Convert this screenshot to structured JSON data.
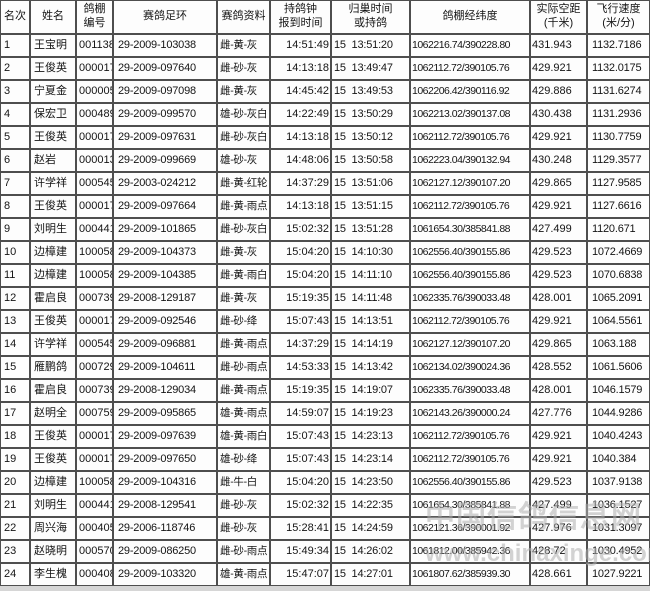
{
  "watermark": {
    "line1": "中国信鸽信息网",
    "line2": "www.chinaxinge.com"
  },
  "table": {
    "headers": [
      {
        "l1": "名次",
        "l2": ""
      },
      {
        "l1": "姓名",
        "l2": ""
      },
      {
        "l1": "鸽棚",
        "l2": "编号"
      },
      {
        "l1": "赛鸽足环",
        "l2": ""
      },
      {
        "l1": "赛鸽资料",
        "l2": ""
      },
      {
        "l1": "持鸽钟",
        "l2": "报到时间"
      },
      {
        "l1": "归巢时间",
        "l2": "或持鸽"
      },
      {
        "l1": "鸽棚经纬度",
        "l2": ""
      },
      {
        "l1": "实际空距",
        "l2": "(千米)"
      },
      {
        "l1": "飞行速度",
        "l2": "(米/分)"
      }
    ],
    "rows": [
      [
        "1",
        "王宝明",
        "001138",
        "29-2009-103038",
        "雌-黄-灰",
        "14:51:49",
        "15  13:51:20",
        "1062216.74/390228.80",
        "431.943",
        "1132.7186"
      ],
      [
        "2",
        "王俊英",
        "000017",
        "29-2009-097640",
        "雌-砂-灰",
        "14:13:18",
        "15  13:49:47",
        "1062112.72/390105.76",
        "429.921",
        "1132.0175"
      ],
      [
        "3",
        "宁夏金",
        "000005",
        "29-2009-097098",
        "雌-黄-灰",
        "14:45:42",
        "15  13:49:53",
        "1062206.42/390116.92",
        "429.886",
        "1131.6274"
      ],
      [
        "4",
        "保宏卫",
        "000489",
        "29-2009-099570",
        "雄-砂-灰白",
        "14:22:49",
        "15  13:50:29",
        "1062213.02/390137.08",
        "430.438",
        "1131.2936"
      ],
      [
        "5",
        "王俊英",
        "000017",
        "29-2009-097631",
        "雌-砂-灰白",
        "14:13:18",
        "15  13:50:12",
        "1062112.72/390105.76",
        "429.921",
        "1130.7759"
      ],
      [
        "6",
        "赵岩",
        "000013",
        "29-2009-099669",
        "雄-砂-灰",
        "14:48:06",
        "15  13:50:58",
        "1062223.04/390132.94",
        "430.248",
        "1129.3577"
      ],
      [
        "7",
        "许学祥",
        "000545",
        "29-2003-024212",
        "雌-黄-红轮",
        "14:37:29",
        "15  13:51:06",
        "1062127.12/390107.20",
        "429.865",
        "1127.9585"
      ],
      [
        "8",
        "王俊英",
        "000017",
        "29-2009-097664",
        "雌-黄-雨点",
        "14:13:18",
        "15  13:51:15",
        "1062112.72/390105.76",
        "429.921",
        "1127.6616"
      ],
      [
        "9",
        "刘明生",
        "000441",
        "29-2009-101865",
        "雌-砂-灰白",
        "15:02:32",
        "15  13:51:28",
        "1061654.30/385841.88",
        "427.499",
        "1120.671"
      ],
      [
        "10",
        "边樟建",
        "100058",
        "29-2009-104373",
        "雌-黄-灰",
        "15:04:20",
        "15  14:10:30",
        "1062556.40/390155.86",
        "429.523",
        "1072.4669"
      ],
      [
        "11",
        "边樟建",
        "100058",
        "29-2009-104385",
        "雌-黄-雨白",
        "15:04:20",
        "15  14:11:10",
        "1062556.40/390155.86",
        "429.523",
        "1070.6838"
      ],
      [
        "12",
        "霍启良",
        "000739",
        "29-2008-129187",
        "雌-黄-灰",
        "15:19:35",
        "15  14:11:48",
        "1062335.76/390033.48",
        "428.001",
        "1065.2091"
      ],
      [
        "13",
        "王俊英",
        "000017",
        "29-2009-092546",
        "雌-砂-绛",
        "15:07:43",
        "15  14:13:51",
        "1062112.72/390105.76",
        "429.921",
        "1064.5561"
      ],
      [
        "14",
        "许学祥",
        "000545",
        "29-2009-096881",
        "雌-黄-雨点",
        "14:37:29",
        "15  14:14:19",
        "1062127.12/390107.20",
        "429.865",
        "1063.188"
      ],
      [
        "15",
        "雁鹏鸽",
        "000729",
        "29-2009-104611",
        "雌-砂-雨点",
        "14:53:33",
        "15  14:13:42",
        "1062134.02/390024.36",
        "428.552",
        "1061.5606"
      ],
      [
        "16",
        "霍启良",
        "000739",
        "29-2008-129034",
        "雌-黄-雨点",
        "15:19:35",
        "15  14:19:07",
        "1062335.76/390033.48",
        "428.001",
        "1046.1579"
      ],
      [
        "17",
        "赵明全",
        "000759",
        "29-2009-095865",
        "雄-黄-雨点",
        "14:59:07",
        "15  14:19:23",
        "1062143.26/390000.24",
        "427.776",
        "1044.9286"
      ],
      [
        "18",
        "王俊英",
        "000017",
        "29-2009-097639",
        "雄-黄-雨白",
        "15:07:43",
        "15  14:23:13",
        "1062112.72/390105.76",
        "429.921",
        "1040.4243"
      ],
      [
        "19",
        "王俊英",
        "000017",
        "29-2009-097650",
        "雄-砂-绛",
        "15:07:43",
        "15  14:23:14",
        "1062112.72/390105.76",
        "429.921",
        "1040.384"
      ],
      [
        "20",
        "边樟建",
        "100058",
        "29-2009-104316",
        "雌-牛-白",
        "15:04:20",
        "15  14:23:50",
        "1062556.40/390155.86",
        "429.523",
        "1037.9138"
      ],
      [
        "21",
        "刘明生",
        "000441",
        "29-2008-129541",
        "雌-砂-灰",
        "15:02:32",
        "15  14:22:35",
        "1061654.30/385841.88",
        "427.499",
        "1036.1527"
      ],
      [
        "22",
        "周兴海",
        "000405",
        "29-2006-118746",
        "雌-砂-灰",
        "15:28:41",
        "15  14:24:59",
        "1062121.36/390001.92",
        "427.976",
        "1031.3097"
      ],
      [
        "23",
        "赵晓明",
        "000570",
        "29-2009-086250",
        "雌-砂-雨点",
        "15:49:34",
        "15  14:26:02",
        "1061812.00/385942.36",
        "428.72",
        "1030.4952"
      ],
      [
        "24",
        "李生槐",
        "000408",
        "29-2009-103320",
        "雄-黄-雨点",
        "15:47:07",
        "15  14:27:01",
        "1061807.62/385939.30",
        "428.661",
        "1027.9221"
      ]
    ]
  }
}
